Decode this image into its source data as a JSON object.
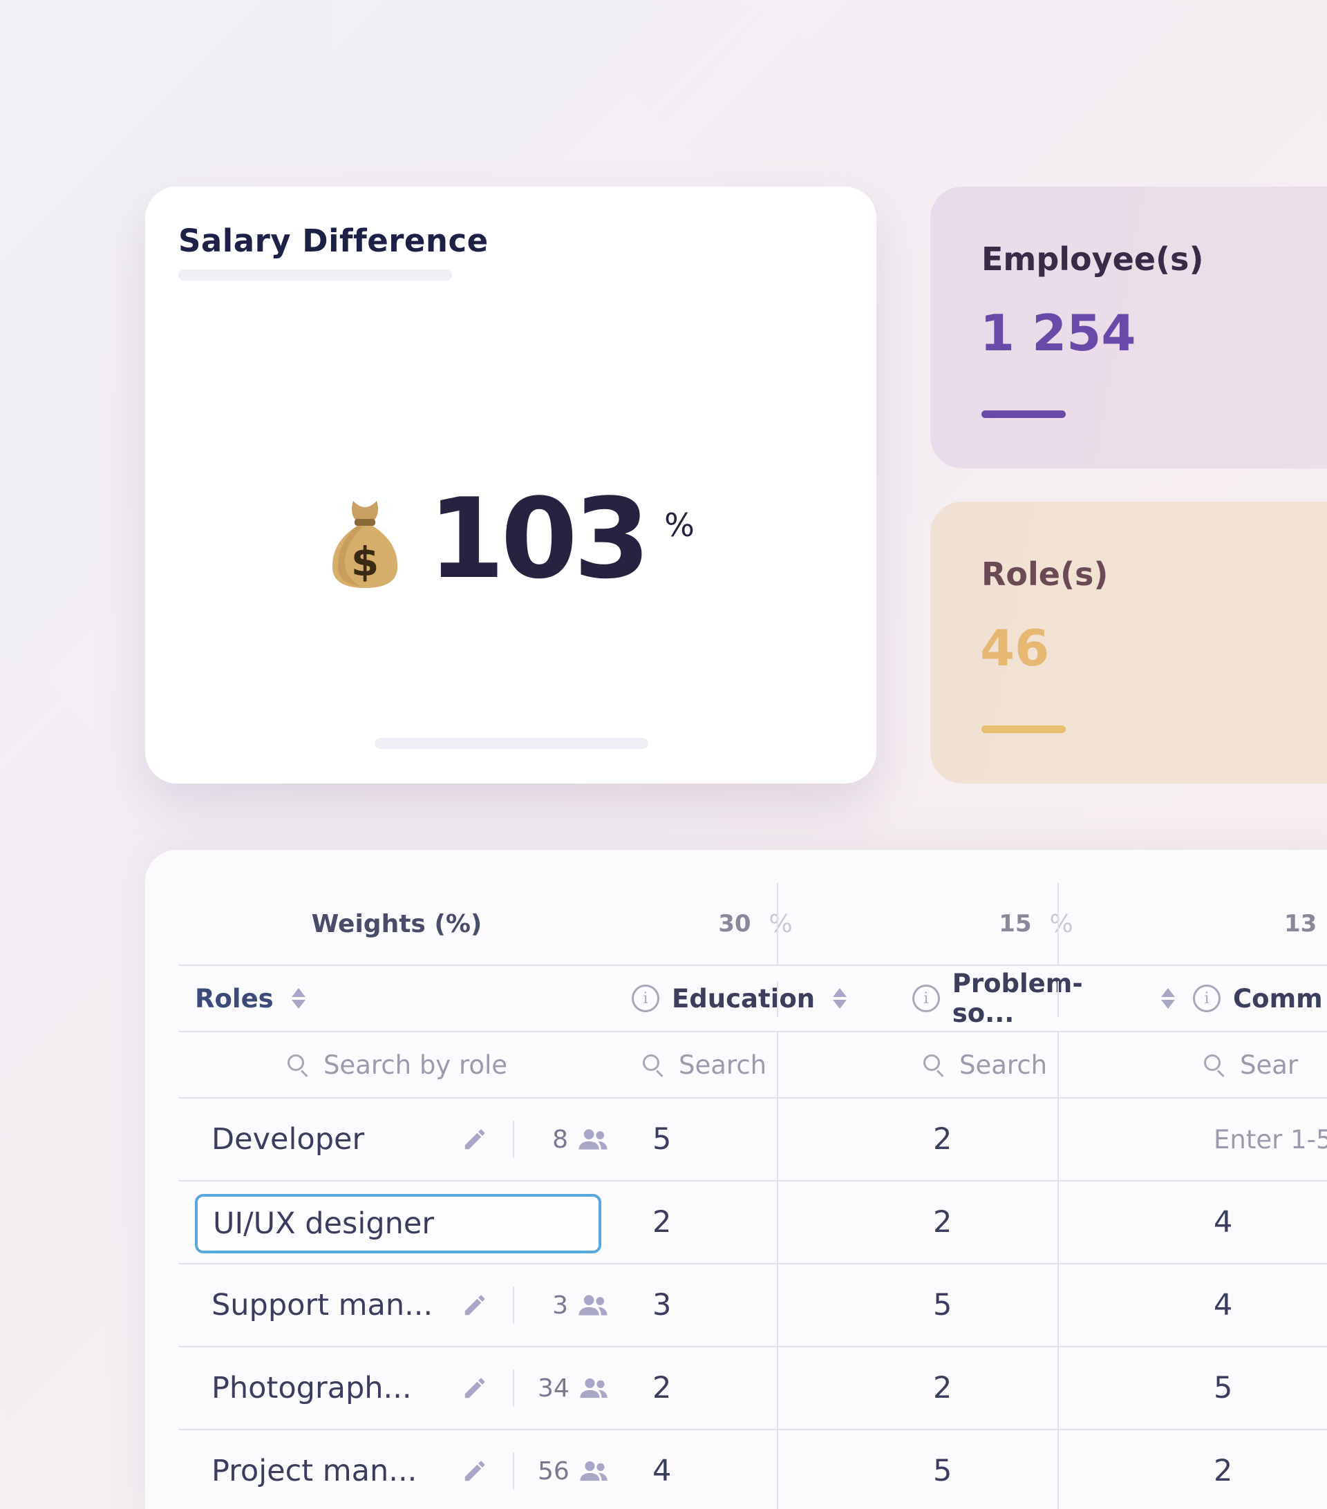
{
  "salary_card": {
    "title": "Salary Difference",
    "value": "103",
    "unit": "%",
    "icon": "moneybag-icon"
  },
  "stats": {
    "employees": {
      "label": "Employee(s)",
      "value": "1 254",
      "accent": "#6a4aa8"
    },
    "roles": {
      "label": "Role(s)",
      "value": "46",
      "accent": "#e8be70"
    }
  },
  "table": {
    "weights_label": "Weights (%)",
    "weights": [
      {
        "value": "30",
        "unit": "%"
      },
      {
        "value": "15",
        "unit": "%"
      },
      {
        "value": "13",
        "unit": ""
      }
    ],
    "columns": {
      "roles": "Roles",
      "criteria": [
        "Education",
        "Problem-so...",
        "Comm"
      ]
    },
    "search": {
      "roles_placeholder": "Search by role",
      "column_placeholder": "Search",
      "partial_placeholder": "Sear"
    },
    "editing_role": "UI/UX designer",
    "rows": [
      {
        "role": "Developer",
        "count": "8",
        "values": [
          "5",
          "2",
          "Enter 1-5"
        ]
      },
      {
        "role": "UI/UX designer",
        "count": "",
        "values": [
          "2",
          "2",
          "4"
        ]
      },
      {
        "role": "Support man...",
        "count": "3",
        "values": [
          "3",
          "5",
          "4"
        ]
      },
      {
        "role": "Photograph...",
        "count": "34",
        "values": [
          "2",
          "2",
          "5"
        ]
      },
      {
        "role": "Project man...",
        "count": "56",
        "values": [
          "4",
          "5",
          "2"
        ]
      }
    ]
  },
  "colors": {
    "selected_input_border": "#5aa9de",
    "title_text": "#1e2147"
  }
}
